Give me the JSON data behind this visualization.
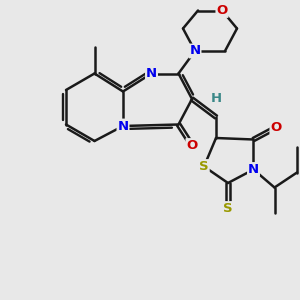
{
  "bg_color": "#e8e8e8",
  "bond_color": "#1a1a1a",
  "bond_width": 1.8,
  "atom_colors": {
    "N": "#0000ee",
    "O": "#cc0000",
    "S": "#999900",
    "H": "#3a8888",
    "C": "#1a1a1a"
  },
  "font_size": 9.5
}
